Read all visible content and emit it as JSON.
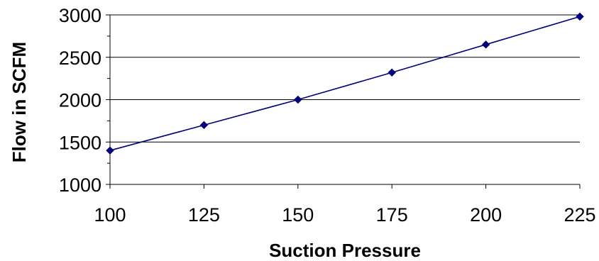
{
  "chart_data": {
    "type": "line",
    "title": "",
    "xlabel": "Suction Pressure",
    "ylabel": "Flow in SCFM",
    "x": [
      100,
      125,
      150,
      175,
      200,
      225
    ],
    "series": [
      {
        "values": [
          1400,
          1700,
          2000,
          2320,
          2650,
          2980
        ],
        "color": "#00007a",
        "marker": "diamond"
      }
    ],
    "xlim": [
      100,
      225
    ],
    "ylim": [
      1000,
      3000
    ],
    "xticks": [
      "100",
      "125",
      "150",
      "175",
      "200",
      "225"
    ],
    "yticks": [
      "1000",
      "1500",
      "2000",
      "2500",
      "3000"
    ],
    "grid": "horizontal",
    "legend": "none",
    "colors": {
      "series": "#00007a",
      "grid": "#000000",
      "axis": "#000000"
    }
  }
}
